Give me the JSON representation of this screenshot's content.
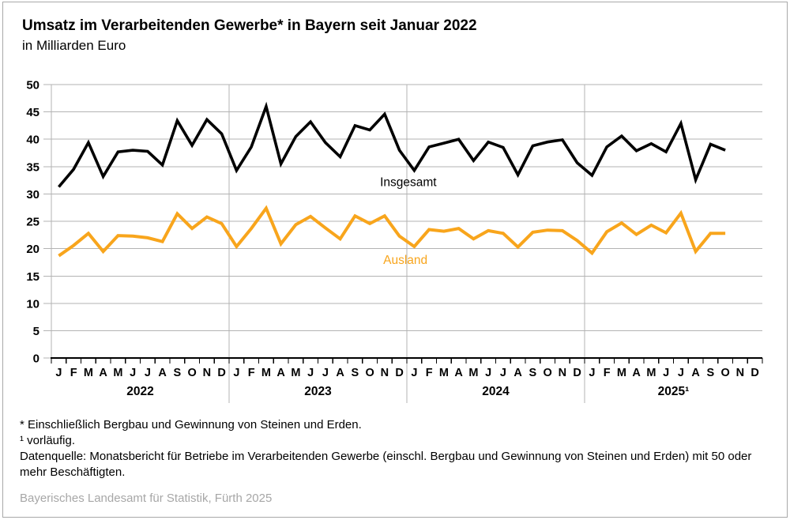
{
  "header": {
    "title": "Umsatz im Verarbeitenden Gewerbe* in Bayern seit Januar 2022",
    "subtitle": "in Milliarden Euro"
  },
  "footnotes": {
    "asterisk": "* Einschließlich Bergbau und Gewinnung von Steinen und Erden.",
    "preliminary": "¹ vorläufig.",
    "source": "Datenquelle: Monatsbericht für Betriebe im Verarbeitenden Gewerbe (einschl. Bergbau und Gewinnung von Steinen und Erden) mit 50 oder mehr Beschäftigten."
  },
  "footer": {
    "credit": "Bayerisches Landesamt für Statistik, Fürth 2025"
  },
  "colors": {
    "grid": "#b3b3b3",
    "axis": "#000000",
    "insgesamt": "#000000",
    "ausland": "#f8a51c",
    "footer_text": "#a7a7a7",
    "border": "#a9a9a9"
  },
  "chart_data": {
    "type": "line",
    "title": "Umsatz im Verarbeitenden Gewerbe in Bayern seit Januar 2022",
    "ylabel": "in Milliarden Euro",
    "ylim": [
      0,
      50
    ],
    "yticks": [
      0,
      5,
      10,
      15,
      20,
      25,
      30,
      35,
      40,
      45,
      50
    ],
    "grid": true,
    "legend_position": "inline-labels",
    "month_letters": [
      "J",
      "F",
      "M",
      "A",
      "M",
      "J",
      "J",
      "A",
      "S",
      "O",
      "N",
      "D"
    ],
    "years": [
      "2022",
      "2023",
      "2024",
      "2025¹"
    ],
    "slots": 48,
    "series": [
      {
        "name": "Insgesamt",
        "color": "#000000",
        "width": 3.6,
        "values": [
          31.3,
          34.5,
          39.4,
          33.2,
          37.7,
          38.0,
          37.8,
          35.3,
          43.4,
          38.9,
          43.6,
          41.0,
          34.3,
          38.6,
          46.0,
          35.5,
          40.5,
          43.2,
          39.4,
          36.8,
          42.5,
          41.7,
          44.6,
          38.0,
          34.3,
          38.6,
          39.3,
          40.0,
          36.1,
          39.5,
          38.5,
          33.5,
          38.8,
          39.5,
          39.9,
          35.7,
          33.4,
          38.6,
          40.6,
          37.9,
          39.2,
          37.7,
          42.9,
          32.6,
          39.1,
          38.0
        ]
      },
      {
        "name": "Ausland",
        "color": "#f8a51c",
        "width": 4,
        "values": [
          18.7,
          20.6,
          22.8,
          19.5,
          22.4,
          22.3,
          22.0,
          21.3,
          26.4,
          23.7,
          25.8,
          24.6,
          20.4,
          23.7,
          27.4,
          20.9,
          24.4,
          25.9,
          23.8,
          21.8,
          26.0,
          24.6,
          26.0,
          22.3,
          20.4,
          23.5,
          23.2,
          23.7,
          21.8,
          23.3,
          22.8,
          20.3,
          23.0,
          23.4,
          23.3,
          21.5,
          19.2,
          23.1,
          24.7,
          22.6,
          24.3,
          22.9,
          26.5,
          19.5,
          22.8,
          22.8
        ]
      }
    ],
    "annotations": [
      {
        "text": "Insgesamt",
        "color": "#000000",
        "month_index": 23.6,
        "value": 32.2
      },
      {
        "text": "Ausland",
        "color": "#f8a51c",
        "month_index": 23.4,
        "value": 18.0
      }
    ]
  }
}
